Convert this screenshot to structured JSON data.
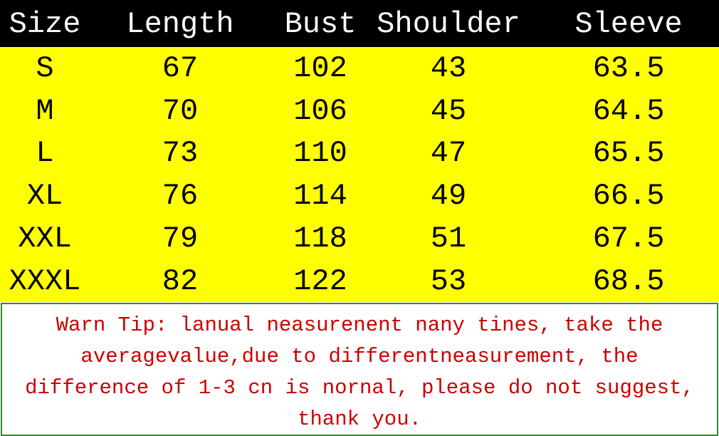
{
  "table": {
    "header": [
      "Size",
      "Length",
      "Bust",
      "Shoulder",
      "Sleeve"
    ],
    "rows": [
      [
        "S",
        67,
        102,
        43,
        63.5
      ],
      [
        "M",
        70,
        106,
        45,
        64.5
      ],
      [
        "L",
        73,
        110,
        47,
        65.5
      ],
      [
        "XL",
        76,
        114,
        49,
        66.5
      ],
      [
        "XXL",
        79,
        118,
        51,
        67.5
      ],
      [
        "XXXL",
        82,
        122,
        53,
        68.5
      ]
    ]
  },
  "note": {
    "lines": [
      "Warn Tip: lanual neasurenent nany tines, take the",
      "averagevalue,due to differentneasurement, the",
      "difference of 1-3 cn is nornal, please do not suggest,",
      "thank you."
    ]
  }
}
